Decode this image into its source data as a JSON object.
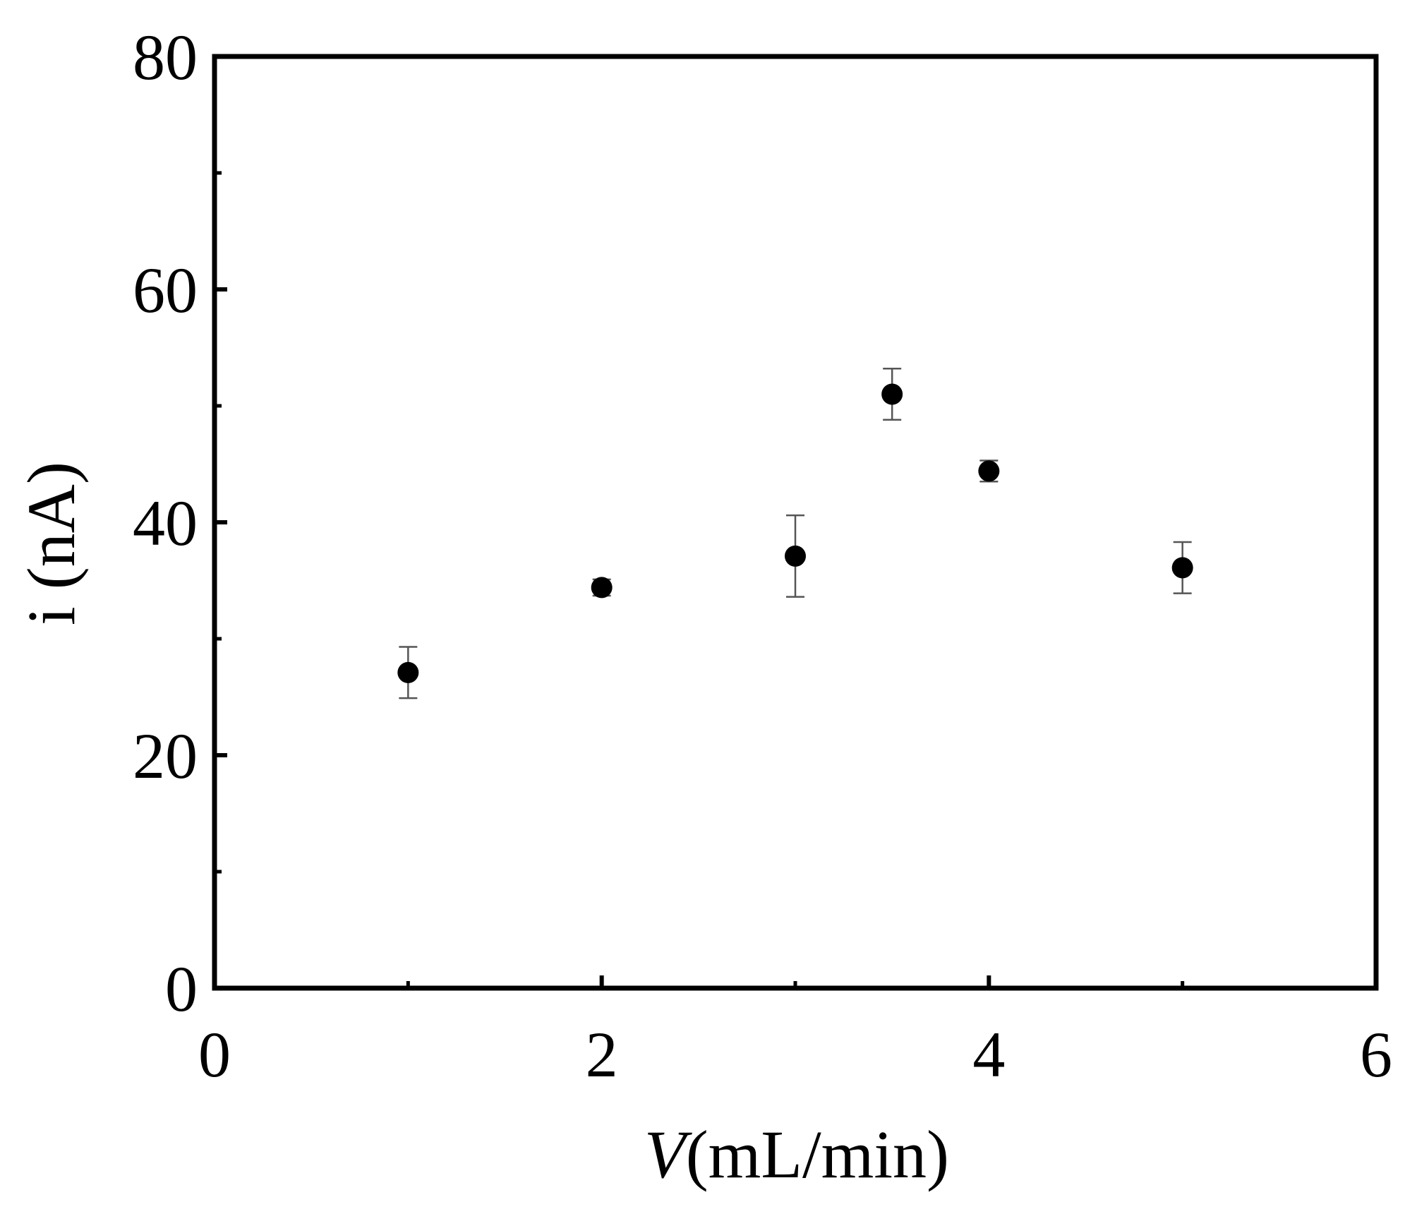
{
  "chart_data": {
    "type": "scatter",
    "xlabel_italic": "V",
    "xlabel_rest": "(mL/min)",
    "ylabel": "i (nA)",
    "xlim": [
      0,
      6
    ],
    "ylim": [
      0,
      80
    ],
    "x_ticks": [
      0,
      2,
      4,
      6
    ],
    "x_minor_ticks": [
      1,
      3,
      5
    ],
    "y_ticks": [
      0,
      20,
      40,
      60,
      80
    ],
    "y_minor_ticks": [
      10,
      30,
      50,
      70
    ],
    "grid": false,
    "legend": "none",
    "series": [
      {
        "points": [
          {
            "x": 1.0,
            "y": 27.1,
            "err": 2.2
          },
          {
            "x": 2.0,
            "y": 34.4,
            "err": 0.7
          },
          {
            "x": 3.0,
            "y": 37.1,
            "err": 3.5
          },
          {
            "x": 3.5,
            "y": 51.0,
            "err": 2.2
          },
          {
            "x": 4.0,
            "y": 44.4,
            "err": 0.9
          },
          {
            "x": 5.0,
            "y": 36.1,
            "err": 2.2
          }
        ]
      }
    ],
    "colors": {
      "marker": "#000000",
      "errorbar": "#555555",
      "axis": "#000000"
    }
  }
}
